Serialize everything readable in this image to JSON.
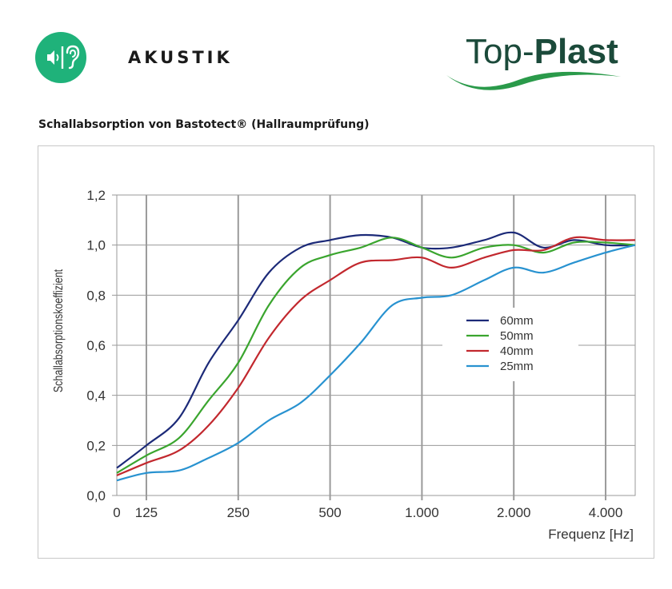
{
  "header": {
    "section_title": "AKUSTIK",
    "logo": {
      "text_a": "Top-",
      "text_b": "Plast"
    },
    "icon": "speaker-ear-icon"
  },
  "chart_title": "Schallabsorption von Bastotect® (Hallraumprüfung)",
  "colors": {
    "accent_green": "#1fb27a",
    "logo_dark": "#1b4a3a"
  },
  "chart_data": {
    "type": "line",
    "title": "",
    "ylabel": "Schallabsorptionskoeffizient",
    "xlabel": "Frequenz [Hz]",
    "xscale": "log",
    "xlim": [
      100,
      5000
    ],
    "ylim": [
      0,
      1.2
    ],
    "x_ticks": [
      125,
      250,
      500,
      1000,
      2000,
      4000
    ],
    "x_tick_labels": [
      "125",
      "250",
      "500",
      "1.000",
      "2.000",
      "4.000"
    ],
    "x_origin_label": "0",
    "y_ticks": [
      0,
      0.2,
      0.4,
      0.6,
      0.8,
      1.0,
      1.2
    ],
    "y_tick_labels": [
      "0,0",
      "0,2",
      "0,4",
      "0,6",
      "0,8",
      "1,0",
      "1,2"
    ],
    "grid": true,
    "legend_position": "center-right",
    "series": [
      {
        "name": "60mm",
        "color": "#1c2a78",
        "x": [
          100,
          125,
          160,
          200,
          250,
          315,
          400,
          500,
          630,
          800,
          1000,
          1250,
          1600,
          2000,
          2500,
          3150,
          4000,
          5000
        ],
        "y": [
          0.11,
          0.2,
          0.31,
          0.53,
          0.7,
          0.89,
          0.99,
          1.02,
          1.04,
          1.03,
          0.99,
          0.99,
          1.02,
          1.05,
          0.99,
          1.02,
          1.0,
          1.0
        ]
      },
      {
        "name": "50mm",
        "color": "#3aa52e",
        "x": [
          100,
          125,
          160,
          200,
          250,
          315,
          400,
          500,
          630,
          800,
          1000,
          1250,
          1600,
          2000,
          2500,
          3150,
          4000,
          5000
        ],
        "y": [
          0.09,
          0.16,
          0.23,
          0.38,
          0.53,
          0.76,
          0.91,
          0.96,
          0.99,
          1.03,
          0.99,
          0.95,
          0.99,
          1.0,
          0.97,
          1.01,
          1.01,
          1.0
        ]
      },
      {
        "name": "40mm",
        "color": "#c2282e",
        "x": [
          100,
          125,
          160,
          200,
          250,
          315,
          400,
          500,
          630,
          800,
          1000,
          1250,
          1600,
          2000,
          2500,
          3150,
          4000,
          5000
        ],
        "y": [
          0.08,
          0.13,
          0.18,
          0.28,
          0.43,
          0.63,
          0.78,
          0.86,
          0.93,
          0.94,
          0.95,
          0.91,
          0.95,
          0.98,
          0.98,
          1.03,
          1.02,
          1.02
        ]
      },
      {
        "name": "25mm",
        "color": "#2892d0",
        "x": [
          100,
          125,
          160,
          200,
          250,
          315,
          400,
          500,
          630,
          800,
          1000,
          1250,
          1600,
          2000,
          2500,
          3150,
          4000,
          5000
        ],
        "y": [
          0.06,
          0.09,
          0.1,
          0.15,
          0.21,
          0.3,
          0.37,
          0.48,
          0.61,
          0.76,
          0.79,
          0.8,
          0.86,
          0.91,
          0.89,
          0.93,
          0.97,
          1.0
        ]
      }
    ]
  }
}
